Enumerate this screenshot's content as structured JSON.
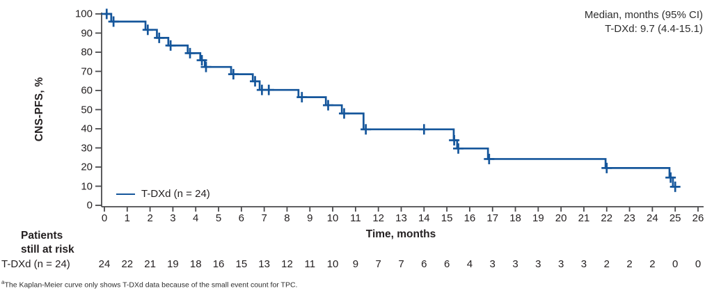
{
  "annotation": {
    "line1": "Median, months (95% CI)",
    "line2": "T-DXd: 9.7 (4.4-15.1)"
  },
  "chart_data": {
    "type": "line",
    "subtype": "kaplan-meier-step",
    "title": "",
    "xlabel": "Time, months",
    "ylabel": "CNS-PFS, %",
    "xlim": [
      0,
      26
    ],
    "ylim": [
      0,
      100
    ],
    "xticks": [
      0,
      1,
      2,
      3,
      4,
      5,
      6,
      7,
      8,
      9,
      10,
      11,
      12,
      13,
      14,
      15,
      16,
      17,
      18,
      19,
      20,
      21,
      22,
      23,
      24,
      25,
      26
    ],
    "yticks": [
      0,
      10,
      20,
      30,
      40,
      50,
      60,
      70,
      80,
      90,
      100
    ],
    "grid": false,
    "legend": {
      "position": "lower-left",
      "entries": [
        "T-DXd (n = 24)"
      ]
    },
    "series": [
      {
        "name": "T-DXd (n = 24)",
        "color": "#15569B",
        "start": [
          0,
          100
        ],
        "end_time": 25.15,
        "steps": [
          [
            0.3,
            96
          ],
          [
            1.8,
            91.7
          ],
          [
            2.3,
            87.5
          ],
          [
            2.8,
            83.5
          ],
          [
            3.65,
            79.5
          ],
          [
            4.2,
            75.8
          ],
          [
            4.4,
            72.3
          ],
          [
            5.55,
            68.5
          ],
          [
            6.5,
            64.8
          ],
          [
            6.8,
            60.3
          ],
          [
            8.5,
            56.5
          ],
          [
            9.7,
            52.3
          ],
          [
            10.4,
            48
          ],
          [
            11.35,
            39.7
          ],
          [
            15.3,
            34
          ],
          [
            15.45,
            29.7
          ],
          [
            16.8,
            24.2
          ],
          [
            21.95,
            19.5
          ],
          [
            24.75,
            14.5
          ],
          [
            24.9,
            9.7
          ]
        ],
        "censors": [
          [
            0.1,
            100
          ],
          [
            0.4,
            96
          ],
          [
            1.9,
            91.7
          ],
          [
            2.4,
            87.5
          ],
          [
            2.9,
            83.5
          ],
          [
            3.75,
            79.5
          ],
          [
            4.27,
            75.8
          ],
          [
            4.45,
            72.3
          ],
          [
            5.65,
            68.5
          ],
          [
            6.6,
            64.8
          ],
          [
            6.9,
            60.3
          ],
          [
            7.2,
            60.3
          ],
          [
            8.65,
            56.5
          ],
          [
            9.8,
            52.3
          ],
          [
            10.5,
            48
          ],
          [
            11.45,
            39.7
          ],
          [
            14.0,
            39.7
          ],
          [
            15.32,
            34
          ],
          [
            15.5,
            29.7
          ],
          [
            16.85,
            24.2
          ],
          [
            22.0,
            19.5
          ],
          [
            24.8,
            14.5
          ],
          [
            25.0,
            9.7
          ]
        ]
      }
    ]
  },
  "risk_table": {
    "header_line1": "Patients",
    "header_line2": "still at risk",
    "row_label": "T-DXd (n = 24)",
    "times": [
      0,
      1,
      2,
      3,
      4,
      5,
      6,
      7,
      8,
      9,
      10,
      11,
      12,
      13,
      14,
      15,
      16,
      17,
      18,
      19,
      20,
      21,
      22,
      23,
      24,
      25,
      26
    ],
    "values": [
      24,
      22,
      21,
      19,
      18,
      16,
      15,
      13,
      12,
      11,
      10,
      9,
      7,
      7,
      6,
      6,
      4,
      3,
      3,
      3,
      3,
      3,
      2,
      2,
      2,
      0,
      0
    ]
  },
  "footnote": {
    "superscript": "a",
    "text": "The Kaplan-Meier curve only shows T-DXd data because of the small event count for TPC."
  },
  "colors": {
    "curve": "#15569B",
    "axis": "#4a4a4c",
    "text": "#231f20"
  }
}
